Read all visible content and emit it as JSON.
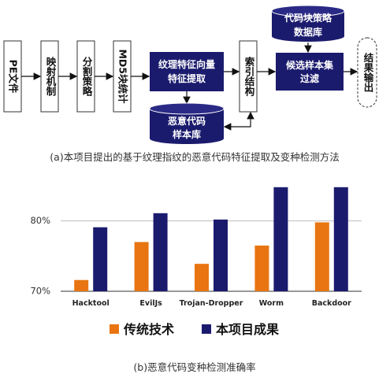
{
  "flow": {
    "pe_file": "PE文件",
    "mapping": "映射机制",
    "split": "分割策略",
    "md5": "MD5块统计",
    "texture": [
      "纹理特征向量",
      "特征提取"
    ],
    "malware_db": [
      "恶意代码",
      "样本库"
    ],
    "index": "索引结构",
    "candidate": [
      "候选样本集",
      "过滤"
    ],
    "code_db": [
      "代码块策略",
      "数据库"
    ],
    "output": "结果输出",
    "caption": "(a)本项目提出的基于纹理指纹的恶意代码特征提取及变种检测方法"
  },
  "chart_data": {
    "type": "bar",
    "categories": [
      "Hacktool",
      "EvilJs",
      "Trojan-Dropper",
      "Worm",
      "Backdoor"
    ],
    "series": [
      {
        "name": "传统技术",
        "values": [
          71.6,
          77.0,
          73.9,
          76.5,
          79.8
        ]
      },
      {
        "name": "本项目成果",
        "values": [
          79.1,
          81.1,
          80.2,
          84.8,
          84.8
        ]
      }
    ],
    "yticks": [
      "70%",
      "80%"
    ],
    "ylim": [
      70,
      85
    ],
    "colors": {
      "traditional": "#E87511",
      "project": "#1B1B6E"
    },
    "caption": "(b)恶意代码变种检测准确率"
  }
}
